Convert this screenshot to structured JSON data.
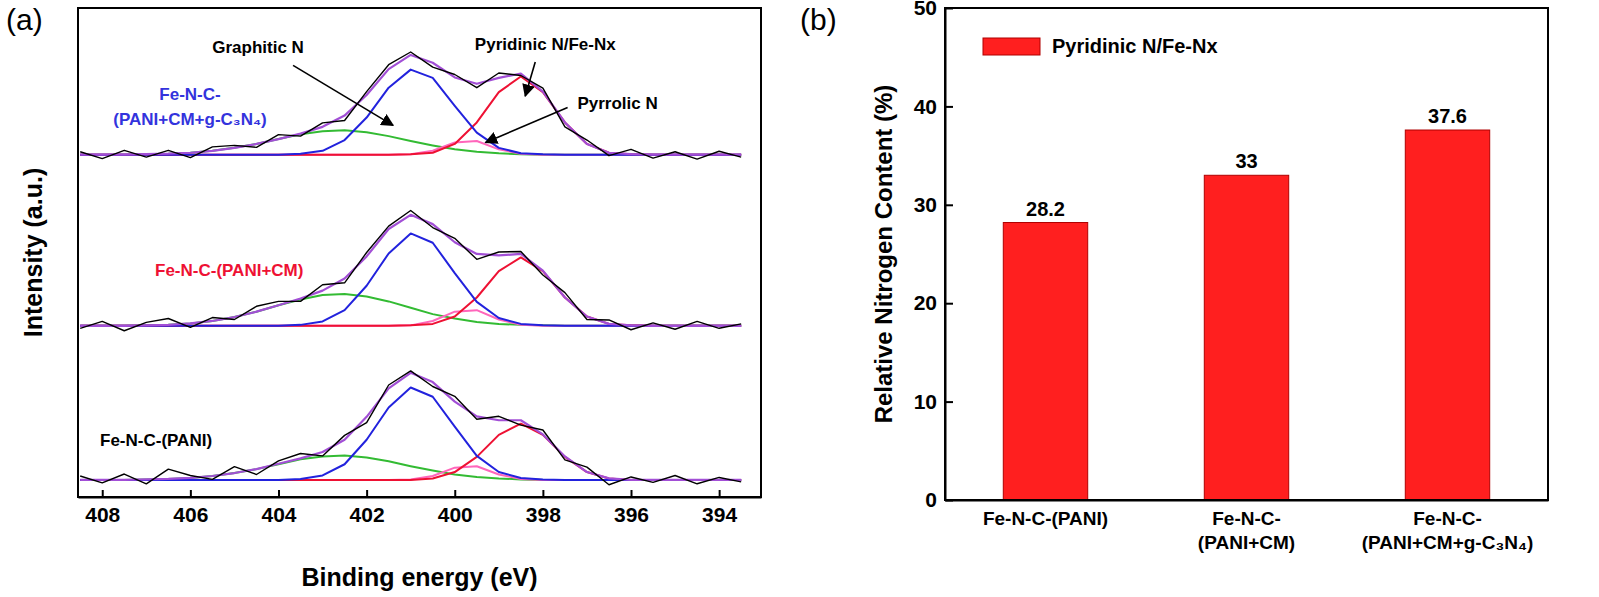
{
  "chart_data": [
    {
      "type": "line",
      "panel_label": "(a)",
      "x_label": "Binding energy (eV)",
      "y_label": "Intensity (a.u.)",
      "x": [
        408.5,
        408,
        407.5,
        407,
        406.5,
        406,
        405.5,
        405,
        404.5,
        404,
        403.5,
        403,
        402.5,
        402,
        401.5,
        401,
        400.5,
        400,
        399.5,
        399,
        398.5,
        398,
        397.5,
        397,
        396.5,
        396,
        395.5,
        395,
        394.5,
        394,
        393.5
      ],
      "xlim": [
        408.55,
        393.05
      ],
      "xticks": [
        408,
        406,
        404,
        402,
        400,
        398,
        396,
        394
      ],
      "ylim": [
        0,
        100
      ],
      "tick_labels": "x",
      "samples": [
        {
          "label": "Fe-N-C-\n(PANI+CM+g-C₃N₄)",
          "series": [
            {
              "color": "#000000",
              "values": [
                70.6,
                69.2,
                70.9,
                69.5,
                70.9,
                69.4,
                71.6,
                71.9,
                71.5,
                74.1,
                73.8,
                76.5,
                77.0,
                82.9,
                88.4,
                91.0,
                87.9,
                86.4,
                83.7,
                86.7,
                86.2,
                83.6,
                75.7,
                73.0,
                69.8,
                71.1,
                69.3,
                70.6,
                69.1,
                70.7,
                69.5
              ]
            },
            {
              "color": "#a24fd6",
              "values": [
                70.0,
                70.0,
                70.0,
                70.1,
                70.2,
                70.4,
                70.8,
                71.4,
                72.2,
                73.2,
                74.3,
                75.7,
                78.0,
                82.2,
                87.5,
                90.4,
                88.8,
                85.8,
                84.5,
                85.7,
                86.6,
                82.9,
                76.6,
                72.2,
                70.4,
                70.1,
                70.0,
                70.0,
                70.0,
                70.0,
                70.0
              ]
            },
            {
              "color": "#2222dd",
              "values": [
                70.0,
                70.0,
                70.0,
                70.0,
                70.0,
                70.0,
                70.0,
                70.0,
                70.0,
                70.0,
                70.2,
                70.8,
                73.0,
                77.6,
                83.7,
                87.4,
                85.7,
                80.0,
                74.5,
                71.4,
                70.3,
                70.1,
                70.0,
                70.0,
                70.0,
                70.0,
                70.0,
                70.0,
                70.0,
                70.0,
                70.0
              ]
            },
            {
              "color": "#ee1133",
              "values": [
                70.0,
                70.0,
                70.0,
                70.0,
                70.0,
                70.0,
                70.0,
                70.0,
                70.0,
                70.0,
                70.0,
                70.0,
                70.0,
                70.0,
                70.0,
                70.1,
                70.4,
                72.2,
                76.6,
                82.8,
                86.0,
                82.8,
                76.6,
                72.2,
                70.4,
                70.1,
                70.0,
                70.0,
                70.0,
                70.0,
                70.0
              ]
            },
            {
              "color": "#ff66bb",
              "values": [
                70.0,
                70.0,
                70.0,
                70.0,
                70.0,
                70.0,
                70.0,
                70.0,
                70.0,
                70.0,
                70.0,
                70.0,
                70.0,
                70.0,
                70.0,
                70.1,
                70.8,
                72.5,
                72.8,
                71.1,
                70.2,
                70.0,
                70.0,
                70.0,
                70.0,
                70.0,
                70.0,
                70.0,
                70.0,
                70.0,
                70.0
              ]
            },
            {
              "color": "#33bb33",
              "values": [
                70.0,
                70.0,
                70.0,
                70.1,
                70.2,
                70.4,
                70.8,
                71.4,
                72.2,
                73.2,
                74.2,
                74.8,
                75.0,
                74.6,
                73.8,
                72.8,
                71.9,
                71.1,
                70.6,
                70.3,
                70.1,
                70.0,
                70.0,
                70.0,
                70.0,
                70.0,
                70.0,
                70.0,
                70.0,
                70.0,
                70.0
              ]
            }
          ]
        },
        {
          "label": "Fe-N-C-(PANI+CM)",
          "series": [
            {
              "color": "#000000",
              "values": [
                34.5,
                35.9,
                34.0,
                35.7,
                36.5,
                34.7,
                36.7,
                36.3,
                39.0,
                40.0,
                40.0,
                43.4,
                43.8,
                50.0,
                55.4,
                58.6,
                55.1,
                52.9,
                48.6,
                50.1,
                50.2,
                45.4,
                41.8,
                36.3,
                36.2,
                34.2,
                35.6,
                34.3,
                35.9,
                34.5,
                35.4
              ]
            },
            {
              "color": "#a24fd6",
              "values": [
                35.0,
                35.0,
                35.0,
                35.1,
                35.2,
                35.5,
                36.0,
                36.8,
                37.9,
                39.2,
                40.6,
                42.2,
                44.7,
                49.2,
                54.8,
                57.7,
                55.8,
                52.1,
                49.7,
                49.4,
                49.7,
                46.3,
                40.8,
                36.9,
                35.4,
                35.1,
                35.0,
                35.0,
                35.0,
                35.0,
                35.0
              ]
            },
            {
              "color": "#2222dd",
              "values": [
                35.0,
                35.0,
                35.0,
                35.0,
                35.0,
                35.0,
                35.0,
                35.0,
                35.0,
                35.0,
                35.2,
                35.9,
                38.2,
                43.2,
                49.8,
                53.9,
                52.0,
                45.8,
                39.9,
                36.6,
                35.4,
                35.1,
                35.0,
                35.0,
                35.0,
                35.0,
                35.0,
                35.0,
                35.0,
                35.0,
                35.0
              ]
            },
            {
              "color": "#ee1133",
              "values": [
                35.0,
                35.0,
                35.0,
                35.0,
                35.0,
                35.0,
                35.0,
                35.0,
                35.0,
                35.0,
                35.0,
                35.0,
                35.0,
                35.0,
                35.0,
                35.1,
                35.4,
                36.9,
                40.8,
                46.2,
                49.0,
                46.2,
                40.8,
                36.9,
                35.4,
                35.1,
                35.0,
                35.0,
                35.0,
                35.0,
                35.0
              ]
            },
            {
              "color": "#ff66bb",
              "values": [
                35.0,
                35.0,
                35.0,
                35.0,
                35.0,
                35.0,
                35.0,
                35.0,
                35.0,
                35.0,
                35.0,
                35.0,
                35.0,
                35.0,
                35.0,
                35.1,
                36.0,
                37.9,
                38.2,
                36.3,
                35.2,
                35.0,
                35.0,
                35.0,
                35.0,
                35.0,
                35.0,
                35.0,
                35.0,
                35.0,
                35.0
              ]
            },
            {
              "color": "#33bb33",
              "values": [
                35.0,
                35.0,
                35.0,
                35.1,
                35.2,
                35.5,
                36.0,
                36.8,
                37.9,
                39.2,
                40.4,
                41.3,
                41.5,
                41.0,
                40.0,
                38.7,
                37.4,
                36.5,
                35.8,
                35.4,
                35.2,
                35.1,
                35.0,
                35.0,
                35.0,
                35.0,
                35.0,
                35.0,
                35.0,
                35.0,
                35.0
              ]
            }
          ]
        },
        {
          "label": "Fe-N-C-(PANI)",
          "series": [
            {
              "color": "#000000",
              "values": [
                4.3,
                2.9,
                4.7,
                2.7,
                5.7,
                4.4,
                3.6,
                6.2,
                4.6,
                7.4,
                8.9,
                8.4,
                12.6,
                15.2,
                22.9,
                25.8,
                22.6,
                20.6,
                15.9,
                16.5,
                14.7,
                13.7,
                7.6,
                6.1,
                2.5,
                4.1,
                3.0,
                4.4,
                2.7,
                4.0,
                3.1
              ]
            },
            {
              "color": "#a24fd6",
              "values": [
                3.5,
                3.5,
                3.5,
                3.6,
                3.7,
                3.9,
                4.3,
                4.9,
                5.7,
                6.8,
                7.9,
                9.2,
                11.7,
                16.4,
                22.2,
                25.4,
                23.5,
                19.5,
                16.5,
                15.7,
                15.7,
                12.8,
                8.3,
                5.1,
                3.8,
                3.5,
                3.5,
                3.5,
                3.5,
                3.5,
                3.5
              ]
            },
            {
              "color": "#2222dd",
              "values": [
                3.5,
                3.5,
                3.5,
                3.5,
                3.5,
                3.5,
                3.5,
                3.5,
                3.5,
                3.5,
                3.7,
                4.4,
                6.7,
                11.7,
                18.3,
                22.4,
                20.5,
                14.4,
                8.4,
                5.1,
                3.9,
                3.6,
                3.5,
                3.5,
                3.5,
                3.5,
                3.5,
                3.5,
                3.5,
                3.5,
                3.5
              ]
            },
            {
              "color": "#ee1133",
              "values": [
                3.5,
                3.5,
                3.5,
                3.5,
                3.5,
                3.5,
                3.5,
                3.5,
                3.5,
                3.5,
                3.5,
                3.5,
                3.5,
                3.5,
                3.5,
                3.5,
                3.8,
                5.1,
                8.2,
                12.7,
                15.0,
                12.7,
                8.2,
                5.1,
                3.8,
                3.5,
                3.5,
                3.5,
                3.5,
                3.5,
                3.5
              ]
            },
            {
              "color": "#ff66bb",
              "values": [
                3.5,
                3.5,
                3.5,
                3.5,
                3.5,
                3.5,
                3.5,
                3.5,
                3.5,
                3.5,
                3.5,
                3.5,
                3.5,
                3.5,
                3.5,
                3.6,
                4.3,
                6.0,
                6.3,
                4.6,
                3.7,
                3.5,
                3.5,
                3.5,
                3.5,
                3.5,
                3.5,
                3.5,
                3.5,
                3.5,
                3.5
              ]
            },
            {
              "color": "#33bb33",
              "values": [
                3.5,
                3.5,
                3.5,
                3.6,
                3.7,
                3.9,
                4.3,
                4.9,
                5.7,
                6.7,
                7.7,
                8.3,
                8.5,
                8.1,
                7.3,
                6.3,
                5.4,
                4.6,
                4.1,
                3.8,
                3.6,
                3.5,
                3.5,
                3.5,
                3.5,
                3.5,
                3.5,
                3.5,
                3.5,
                3.5,
                3.5
              ]
            }
          ]
        }
      ],
      "annotations": [
        {
          "text": "Graphitic N",
          "x": 401.4,
          "y": 76
        },
        {
          "text": "Pyridinic N/Fe-Nx",
          "x": 398.4,
          "y": 82
        },
        {
          "text": "Pyrrolic N",
          "x": 399.3,
          "y": 72.5
        }
      ]
    },
    {
      "type": "bar",
      "panel_label": "(b)",
      "y_label": "Relative Nitrogen Content (%)",
      "categories": [
        "Fe-N-C-(PANI)",
        "Fe-N-C-\n(PANI+CM)",
        "Fe-N-C-\n(PANI+CM+g-C₃N₄)"
      ],
      "series": [
        {
          "name": "Pyridinic N/Fe-Nx",
          "color": "#ff1f1f",
          "values": [
            28.2,
            33,
            37.6
          ]
        }
      ],
      "ylim": [
        0,
        50
      ],
      "yticks": [
        0,
        10,
        20,
        30,
        40,
        50
      ],
      "data_labels": true,
      "legend": "upper left"
    }
  ]
}
